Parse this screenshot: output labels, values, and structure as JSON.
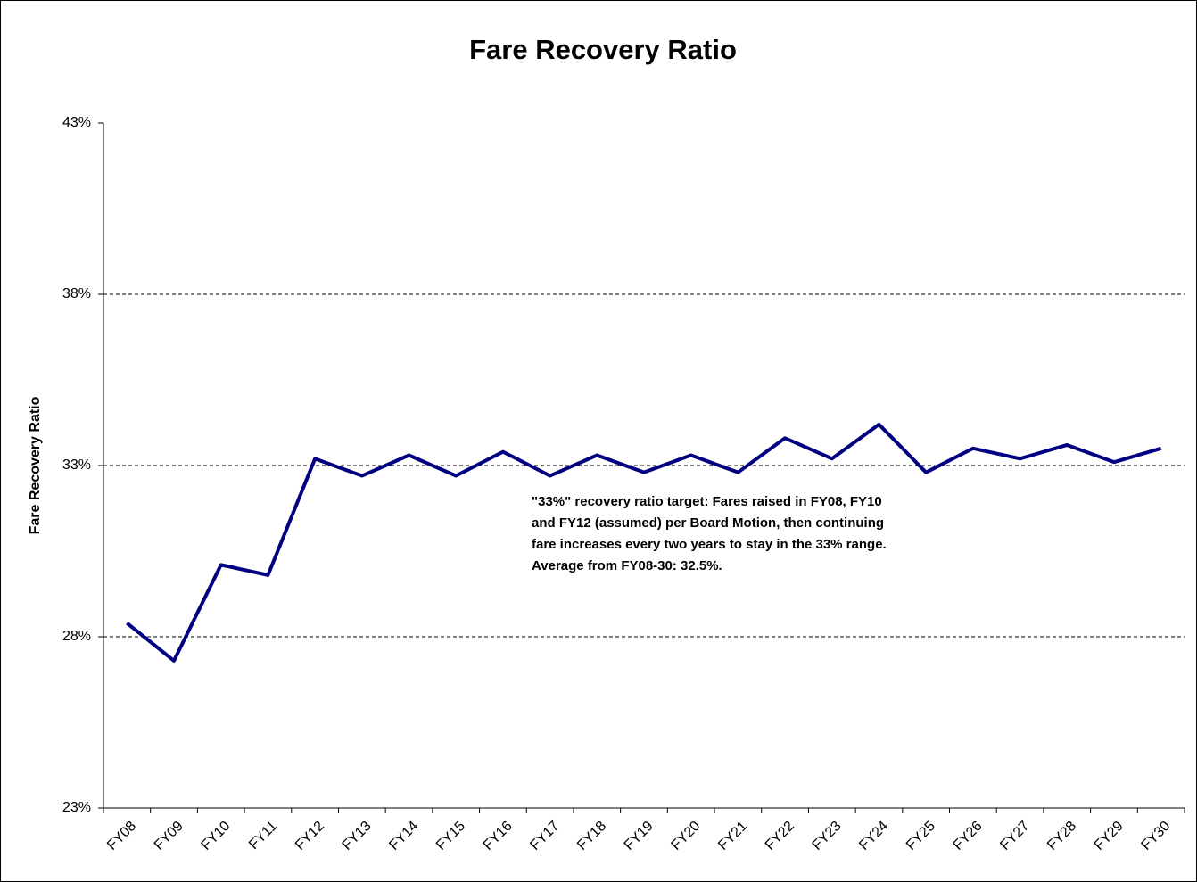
{
  "chart_data": {
    "type": "line",
    "title": "Fare Recovery Ratio",
    "y_label": "Fare Recovery Ratio",
    "categories": [
      "FY08",
      "FY09",
      "FY10",
      "FY11",
      "FY12",
      "FY13",
      "FY14",
      "FY15",
      "FY16",
      "FY17",
      "FY18",
      "FY19",
      "FY20",
      "FY21",
      "FY22",
      "FY23",
      "FY24",
      "FY25",
      "FY26",
      "FY27",
      "FY28",
      "FY29",
      "FY30"
    ],
    "values": [
      28.4,
      27.3,
      30.1,
      29.8,
      33.2,
      32.7,
      33.3,
      32.7,
      33.4,
      32.7,
      33.3,
      32.8,
      33.3,
      32.8,
      33.8,
      33.2,
      34.2,
      32.8,
      33.5,
      33.2,
      33.6,
      33.1,
      33.5
    ],
    "color": "#000080",
    "ylim": [
      23,
      43
    ],
    "yticks": [
      {
        "value": 23,
        "label": "23%"
      },
      {
        "value": 28,
        "label": "28%"
      },
      {
        "value": 33,
        "label": "33%"
      },
      {
        "value": 38,
        "label": "38%"
      },
      {
        "value": 43,
        "label": "43%"
      }
    ],
    "grid": true,
    "annotation": [
      "\"33%\" recovery ratio target:  Fares raised in FY08, FY10",
      "and FY12 (assumed) per Board Motion, then continuing",
      "fare increases every two years to stay in the 33% range.",
      "Average from FY08-30: 32.5%."
    ]
  }
}
